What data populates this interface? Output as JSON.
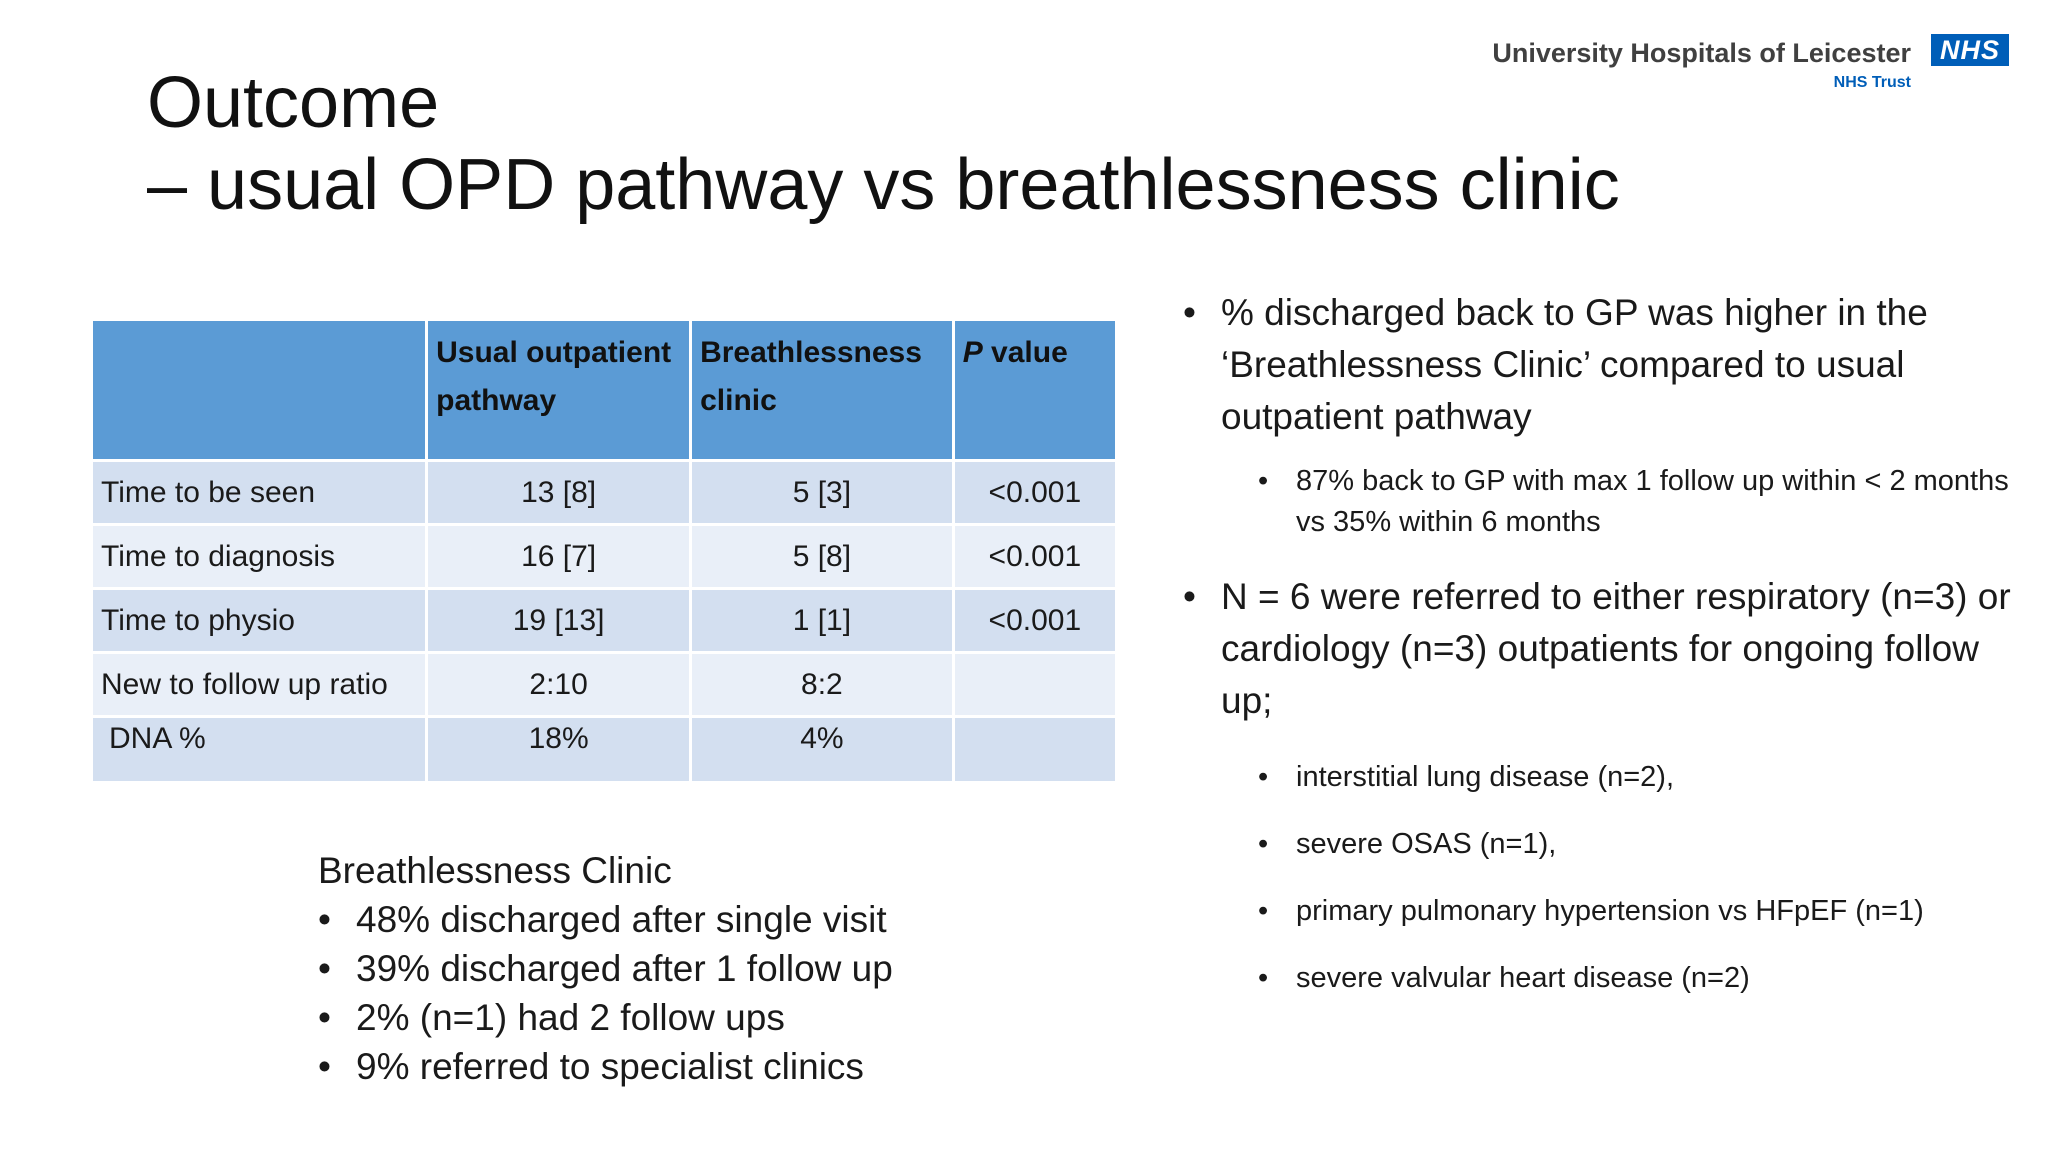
{
  "slide": {
    "title_line1": "Outcome",
    "title_line2": "– usual OPD pathway  vs breathlessness clinic"
  },
  "logo": {
    "organisation": "University Hospitals of Leicester",
    "trust": "NHS Trust",
    "badge": "NHS",
    "badge_color": "#005eb8"
  },
  "table": {
    "header_color": "#5b9bd5",
    "row_color_odd": "#d3dff0",
    "row_color_even": "#e9eff8",
    "headers": {
      "blank": "",
      "usual_line1": "Usual outpatient",
      "usual_line2": "pathway",
      "bc_line1": "Breathlessness",
      "bc_line2": "clinic",
      "p_italic": "P",
      "p_rest": " value"
    },
    "rows": [
      {
        "label": "Time to be seen",
        "usual": "13 [8]",
        "bc": "5 [3]",
        "p": "<0.001"
      },
      {
        "label": "Time to diagnosis",
        "usual": "16 [7]",
        "bc": "5 [8]",
        "p": "<0.001"
      },
      {
        "label": "Time to physio",
        "usual": "19 [13]",
        "bc": "1 [1]",
        "p": "<0.001"
      },
      {
        "label": "New to follow up ratio",
        "usual": "2:10",
        "bc": "8:2",
        "p": ""
      },
      {
        "label": "DNA %",
        "usual": "18%",
        "bc": "4%",
        "p": ""
      }
    ]
  },
  "breathlessness_summary": {
    "heading": "Breathlessness Clinic",
    "items": [
      "48% discharged after single visit",
      "39% discharged after 1 follow up",
      "2% (n=1) had 2 follow ups",
      "9% referred to specialist clinics"
    ]
  },
  "right_notes": {
    "point1": "% discharged back to GP was higher in the ‘Breathlessness Clinic’ compared to usual outpatient pathway",
    "point1_sub": "87% back to GP with max 1 follow up within < 2 months vs 35% within 6 months",
    "point2": "N = 6 were referred to either respiratory (n=3) or cardiology (n=3) outpatients for ongoing follow up;",
    "point2_subs": [
      "interstitial lung disease (n=2),",
      "severe OSAS (n=1),",
      "primary pulmonary hypertension vs HFpEF (n=1)",
      "severe valvular heart disease (n=2)"
    ]
  }
}
